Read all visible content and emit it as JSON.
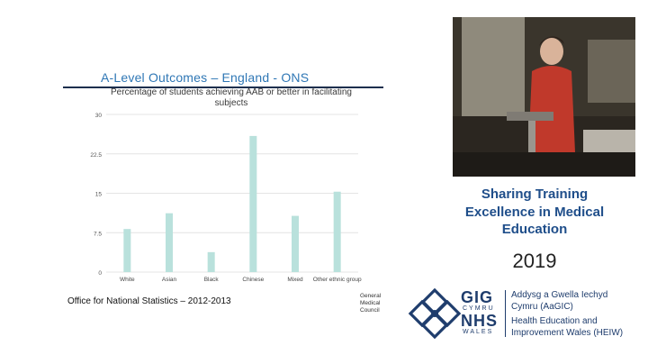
{
  "slide": {
    "title": "A-Level Outcomes – England - ONS",
    "source": "Office for National Statistics – 2012-2013",
    "gmc_logo_text": [
      "General",
      "Medical",
      "Council"
    ]
  },
  "branding": {
    "conference_title": "Sharing Training Excellence in Medical Education",
    "year": "2019",
    "gig_text": "GIG",
    "cymru_text": "CYMRU",
    "nhs_text": "NHS",
    "wales_text": "WALES",
    "aagic_line1": "Addysg a Gwella Iechyd",
    "aagic_line2": "Cymru (AaGIC)",
    "heiw_line1": "Health Education and",
    "heiw_line2": "Improvement Wales (HEIW)"
  },
  "colors": {
    "title": "#2f77b5",
    "bar": "#b9e1dc",
    "brand": "#1f3d6d"
  },
  "chart_data": {
    "type": "bar",
    "title": "Percentage of students achieving AAB or better in facilitating subjects",
    "categories": [
      "White",
      "Asian",
      "Black",
      "Chinese",
      "Mixed",
      "Other ethnic group"
    ],
    "values": [
      8.2,
      11.2,
      3.8,
      25.9,
      10.7,
      15.3
    ],
    "y_ticks": [
      "0",
      "7.5",
      "15",
      "22.5",
      "30"
    ],
    "ylim": [
      0,
      30
    ],
    "grid": true,
    "legend": "none"
  }
}
